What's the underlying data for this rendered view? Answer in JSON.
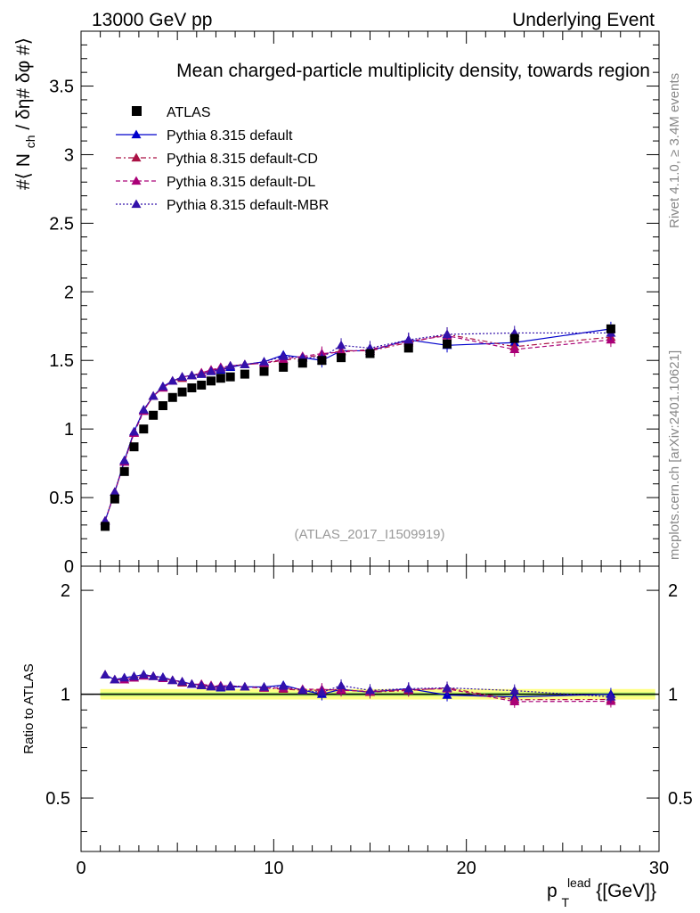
{
  "header": {
    "energy_label": "13000 GeV pp",
    "process_label": "Underlying Event"
  },
  "side": {
    "rivet_info": "Rivet 4.1.0, ≥ 3.4M events",
    "site_info": "mcplots.cern.ch [arXiv:2401.10621]"
  },
  "chart_data": {
    "type": "scatter",
    "title": "Mean charged-particle multiplicity density, towards region",
    "analysis_id": "(ATLAS_2017_I1509919)",
    "ylabel": "#⟨ N_ch / δη# δφ #⟩",
    "ylabel_main": "#⟨ N",
    "ylabel_sub": "ch",
    "ylabel_rest": " / δη# δφ #⟩",
    "xlabel_main": "p",
    "xlabel_sub": "T",
    "xlabel_sup": "lead",
    "xlabel_rest": " {[GeV]}",
    "ratio_ylabel": "Ratio to ATLAS",
    "xlim": [
      0,
      30
    ],
    "ylim": [
      0,
      3.9
    ],
    "ratio_ylim": [
      0.35,
      2.35
    ],
    "x_ticks": [
      "0",
      "10",
      "20",
      "30"
    ],
    "y_ticks": [
      "0",
      "0.5",
      "1",
      "1.5",
      "2",
      "2.5",
      "3",
      "3.5"
    ],
    "ratio_ticks": [
      "0.5",
      "1",
      "2"
    ],
    "legend_position": "top-left",
    "x": [
      1.25,
      1.75,
      2.25,
      2.75,
      3.25,
      3.75,
      4.25,
      4.75,
      5.25,
      5.75,
      6.25,
      6.75,
      7.25,
      7.75,
      8.5,
      9.5,
      10.5,
      11.5,
      12.5,
      13.5,
      15.0,
      17.0,
      19.0,
      22.5,
      27.5
    ],
    "series": [
      {
        "name": "ATLAS",
        "style": "data",
        "color": "#000000",
        "values": [
          0.29,
          0.49,
          0.69,
          0.87,
          1.0,
          1.1,
          1.17,
          1.23,
          1.27,
          1.3,
          1.32,
          1.35,
          1.37,
          1.38,
          1.4,
          1.42,
          1.45,
          1.48,
          1.5,
          1.52,
          1.55,
          1.59,
          1.62,
          1.66,
          1.73
        ]
      },
      {
        "name": "Pythia 8.315 default",
        "style": "solid",
        "color": "#0000cc",
        "values": [
          0.33,
          0.54,
          0.77,
          0.98,
          1.14,
          1.24,
          1.31,
          1.35,
          1.38,
          1.39,
          1.4,
          1.42,
          1.43,
          1.45,
          1.47,
          1.49,
          1.54,
          1.52,
          1.5,
          1.57,
          1.57,
          1.65,
          1.61,
          1.63,
          1.73
        ]
      },
      {
        "name": "Pythia 8.315 default-CD",
        "style": "dashdot",
        "color": "#aa1144",
        "values": [
          0.33,
          0.54,
          0.76,
          0.97,
          1.13,
          1.24,
          1.3,
          1.35,
          1.37,
          1.39,
          1.41,
          1.43,
          1.44,
          1.46,
          1.47,
          1.48,
          1.5,
          1.52,
          1.54,
          1.57,
          1.57,
          1.63,
          1.69,
          1.6,
          1.67
        ]
      },
      {
        "name": "Pythia 8.315 default-DL",
        "style": "dashed",
        "color": "#aa0077",
        "values": [
          0.33,
          0.54,
          0.76,
          0.97,
          1.13,
          1.24,
          1.3,
          1.35,
          1.38,
          1.39,
          1.41,
          1.43,
          1.45,
          1.46,
          1.47,
          1.48,
          1.51,
          1.53,
          1.55,
          1.56,
          1.58,
          1.64,
          1.68,
          1.58,
          1.65
        ]
      },
      {
        "name": "Pythia 8.315 default-MBR",
        "style": "dotted",
        "color": "#3311aa",
        "values": [
          0.33,
          0.54,
          0.77,
          0.98,
          1.14,
          1.24,
          1.31,
          1.35,
          1.38,
          1.39,
          1.4,
          1.42,
          1.44,
          1.46,
          1.47,
          1.49,
          1.53,
          1.52,
          1.52,
          1.61,
          1.59,
          1.65,
          1.69,
          1.7,
          1.7
        ]
      }
    ],
    "data_band_color": "#ffff66",
    "data_band_inner_color": "#99ee66"
  }
}
